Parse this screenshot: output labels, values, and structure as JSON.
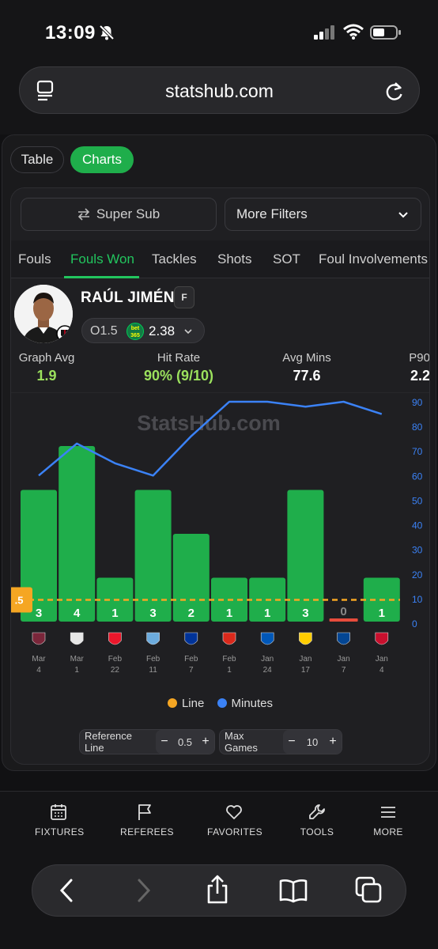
{
  "status": {
    "time": "13:09"
  },
  "browser": {
    "url": "statshub.com"
  },
  "view_toggle": {
    "table": "Table",
    "charts": "Charts"
  },
  "filters": {
    "super_sub": "Super Sub",
    "more_filters": "More Filters"
  },
  "tabs": [
    "Fouls",
    "Fouls Won",
    "Tackles",
    "Shots",
    "SOT",
    "Foul Involvements"
  ],
  "active_tab": "Fouls Won",
  "player": {
    "name": "RAÚL JIMÉNEZ",
    "position": "F",
    "line": "O1.5",
    "bookmaker": "bet 365",
    "odds": "2.38"
  },
  "stats": {
    "graph_avg_label": "Graph Avg",
    "graph_avg": "1.9",
    "hit_rate_label": "Hit Rate",
    "hit_rate": "90% (9/10)",
    "avg_mins_label": "Avg Mins",
    "avg_mins": "77.6",
    "p90_label": "P90",
    "p90": "2.2"
  },
  "watermark": "StatsHub.com",
  "chart_data": {
    "type": "bar",
    "categories": [
      "Mar 4",
      "Mar 1",
      "Feb 22",
      "Feb 11",
      "Feb 7",
      "Feb 1",
      "Jan 24",
      "Jan 17",
      "Jan 7",
      "Jan 4"
    ],
    "series": [
      {
        "name": "Fouls Won",
        "values": [
          3,
          4,
          1,
          3,
          2,
          1,
          1,
          3,
          0,
          1
        ]
      },
      {
        "name": "Minutes",
        "values": [
          60,
          73,
          65,
          60,
          76,
          90,
          90,
          88,
          90,
          85
        ]
      }
    ],
    "line_value": 0.5,
    "line_label": ".5",
    "ylim_minutes": [
      0,
      90
    ],
    "yticks_minutes": [
      0,
      10,
      20,
      30,
      40,
      50,
      60,
      70,
      80,
      90
    ],
    "teams": [
      "West Ham",
      "Tottenham",
      "Sunderland",
      "Man City",
      "Everton",
      "Man United",
      "Brighton",
      "Leeds",
      "Chelsea",
      "Liverpool"
    ],
    "team_colors": [
      "#7a263a",
      "#e6e6e6",
      "#eb172b",
      "#6cabdd",
      "#003399",
      "#da291c",
      "#0057b8",
      "#ffcd00",
      "#034694",
      "#c8102e"
    ],
    "colors": {
      "bar": "#1fae4b",
      "bar_zero": "#e74c3c",
      "minutes": "#3b82f6",
      "line": "#f5a623"
    }
  },
  "legend": {
    "line": "Line",
    "minutes": "Minutes"
  },
  "controls": {
    "reference_line_label": "Reference Line",
    "reference_line_value": "0.5",
    "max_games_label": "Max Games",
    "max_games_value": "10"
  },
  "nav": {
    "fixtures": "FIXTURES",
    "referees": "REFEREES",
    "favorites": "FAVORITES",
    "tools": "TOOLS",
    "more": "MORE"
  }
}
